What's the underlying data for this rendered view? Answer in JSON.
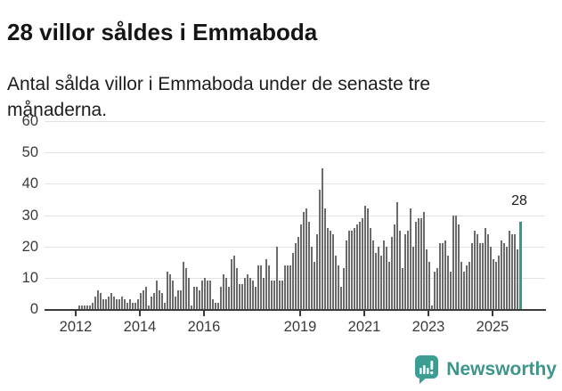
{
  "header": {
    "title": "28 villor såldes i Emmaboda",
    "subtitle": "Antal sålda villor i Emmaboda under de senaste tre månaderna."
  },
  "chart_data": {
    "type": "bar",
    "title": "28 villor såldes i Emmaboda",
    "subtitle": "Antal sålda villor i Emmaboda under de senaste tre månaderna.",
    "unit": "sålda villor (rullande 3 månader)",
    "frequency": "monthly",
    "start_month": "2012-02",
    "end_month": "2025-11",
    "ylim": [
      0,
      60
    ],
    "y_ticks": [
      0,
      10,
      20,
      30,
      40,
      50,
      60
    ],
    "x_tick_labels": [
      "2012",
      "2014",
      "2016",
      "2019",
      "2021",
      "2023",
      "2025"
    ],
    "grid": "horizontal",
    "legend": "none",
    "values": [
      1,
      1,
      1,
      1,
      1,
      2,
      4,
      6,
      5,
      3,
      3,
      4,
      5,
      4,
      3,
      3,
      4,
      3,
      2,
      3,
      2,
      2,
      3,
      5,
      6,
      7,
      1,
      4,
      5,
      9,
      6,
      5,
      2,
      12,
      11,
      9,
      4,
      6,
      6,
      15,
      13,
      10,
      1,
      7,
      7,
      6,
      9,
      10,
      9,
      9,
      3,
      2,
      2,
      7,
      11,
      10,
      7,
      16,
      17,
      13,
      8,
      8,
      10,
      11,
      10,
      9,
      7,
      14,
      14,
      10,
      16,
      14,
      9,
      9,
      20,
      9,
      9,
      14,
      14,
      14,
      18,
      21,
      23,
      27,
      31,
      32,
      28,
      20,
      15,
      24,
      38,
      45,
      32,
      26,
      25,
      24,
      17,
      14,
      7,
      13,
      22,
      25,
      25,
      26,
      27,
      28,
      29,
      33,
      32,
      26,
      22,
      18,
      20,
      17,
      22,
      20,
      15,
      23,
      27,
      34,
      25,
      13,
      24,
      25,
      32,
      20,
      28,
      29,
      29,
      31,
      19,
      15,
      1,
      12,
      13,
      21,
      21,
      22,
      17,
      12,
      30,
      30,
      27,
      15,
      12,
      14,
      15,
      21,
      25,
      24,
      21,
      21,
      26,
      24,
      20,
      16,
      15,
      17,
      22,
      21,
      20,
      25,
      24,
      24,
      19,
      28
    ],
    "highlight": {
      "index": 165,
      "value": 28,
      "label": "28",
      "color": "#2f9c92"
    },
    "bar_color": "#6b6b6b"
  },
  "colors": {
    "bar": "#6b6b6b",
    "highlight": "#2f9c92",
    "grid": "#e2e2e2",
    "axis": "#3b3b3b",
    "text": "#1c1c1c",
    "tick_text": "#3a3a3a",
    "brand": "#3d958c",
    "logo": "#3c9e93"
  },
  "footer": {
    "brand_name": "Newsworthy"
  }
}
